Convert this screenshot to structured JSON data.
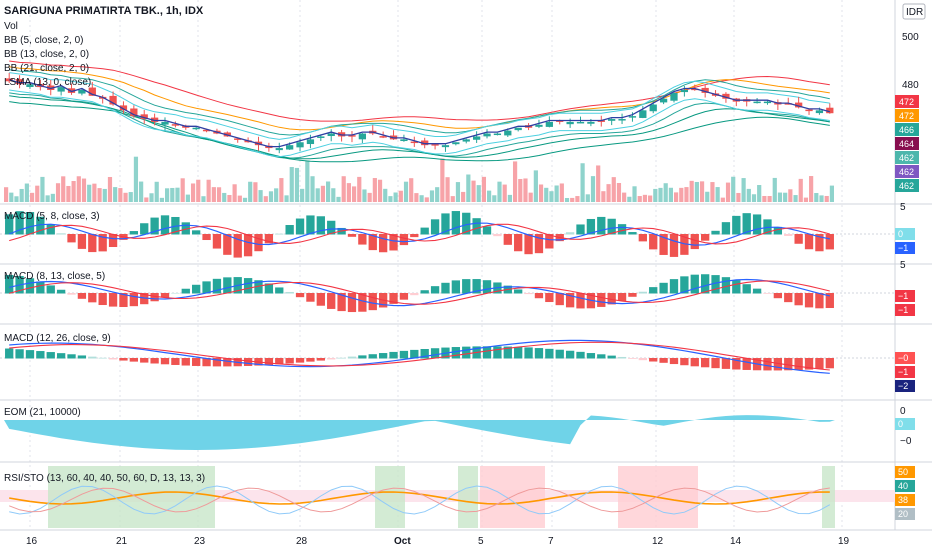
{
  "header": {
    "title": "SARIGUNA PRIMATIRTA TBK., 1h, IDX",
    "currency": "IDR"
  },
  "legend": {
    "vol": "Vol",
    "bb1": "BB (5, close, 2, 0)",
    "bb2": "BB (13, close, 2, 0)",
    "bb3": "BB (21, close, 2, 0)",
    "lsma": "LSMA (13, 0, close)"
  },
  "panes": {
    "macd1": "MACD (5, 8, close, 3)",
    "macd2": "MACD (8, 13, close, 5)",
    "macd3": "MACD (12, 26, close, 9)",
    "eom": "EOM (21, 10000)",
    "rsi": "RSI/STO (13, 60, 40, 40, 50, 60, D, 13, 13, 3)"
  },
  "price_axis": {
    "ticks": [
      "500",
      "480"
    ]
  },
  "price_tags": [
    {
      "value": "472",
      "color": "#f23645"
    },
    {
      "value": "472",
      "color": "#ff9800"
    },
    {
      "value": "466",
      "color": "#26a69a"
    },
    {
      "value": "464",
      "color": "#880e4f"
    },
    {
      "value": "462",
      "color": "#4db6ac"
    },
    {
      "value": "462",
      "color": "#7e57c2"
    },
    {
      "value": "462",
      "color": "#26a69a"
    }
  ],
  "pane_axes": {
    "macd1": {
      "ticks": [
        "5",
        "0"
      ],
      "tags": [
        {
          "value": "0",
          "color": "#80deea"
        },
        {
          "value": "−1",
          "color": "#2962ff"
        }
      ]
    },
    "macd2": {
      "ticks": [
        "5"
      ],
      "tags": [
        {
          "value": "−1",
          "color": "#f23645"
        },
        {
          "value": "−1",
          "color": "#f23645"
        }
      ]
    },
    "macd3": {
      "ticks": [],
      "tags": [
        {
          "value": "−0",
          "color": "#ff5252"
        },
        {
          "value": "−1",
          "color": "#f23645"
        },
        {
          "value": "−2",
          "color": "#1a237e"
        }
      ]
    },
    "eom": {
      "ticks": [
        "0",
        "−0"
      ],
      "tags": [
        {
          "value": "0",
          "color": "#80deea"
        }
      ]
    },
    "rsi": {
      "ticks": [],
      "tags": [
        {
          "value": "50",
          "color": "#ff9800"
        },
        {
          "value": "40",
          "color": "#26a69a"
        },
        {
          "value": "38",
          "color": "#ff9800"
        },
        {
          "value": "20",
          "color": "#b0bec5"
        }
      ]
    }
  },
  "time_axis": [
    "16",
    "21",
    "23",
    "28",
    "Oct",
    "5",
    "7",
    "12",
    "14",
    "19"
  ],
  "colors": {
    "up": "#26a69a",
    "down": "#ef5350",
    "bb_red": "#f23645",
    "bb_orange": "#ff9800",
    "bb_green": "#089981",
    "lsma": "#2f3fa3",
    "eom": "#6fd3e8",
    "grid": "#e0e3eb"
  },
  "chart_data": {
    "type": "candlestick",
    "title": "SARIGUNA PRIMATIRTA TBK., 1h, IDX",
    "ylabel": "IDR",
    "ylim": [
      446,
      508
    ],
    "close_series": [
      480,
      479,
      479,
      478,
      477,
      478,
      476,
      477,
      475,
      474,
      472,
      470,
      468,
      467,
      466,
      466,
      465,
      464,
      464,
      463,
      462,
      461,
      460,
      459,
      458,
      457,
      457,
      458,
      459,
      460,
      461,
      462,
      461,
      461,
      462,
      462,
      461,
      460,
      460,
      459,
      458,
      458,
      458,
      459,
      460,
      461,
      462,
      462,
      463,
      464,
      464,
      465,
      466,
      466,
      466,
      466,
      466,
      466,
      467,
      467,
      468,
      470,
      472,
      474,
      476,
      477,
      477,
      476,
      475,
      474,
      473,
      473,
      473,
      473,
      472,
      472,
      471,
      470,
      470,
      469
    ]
  }
}
